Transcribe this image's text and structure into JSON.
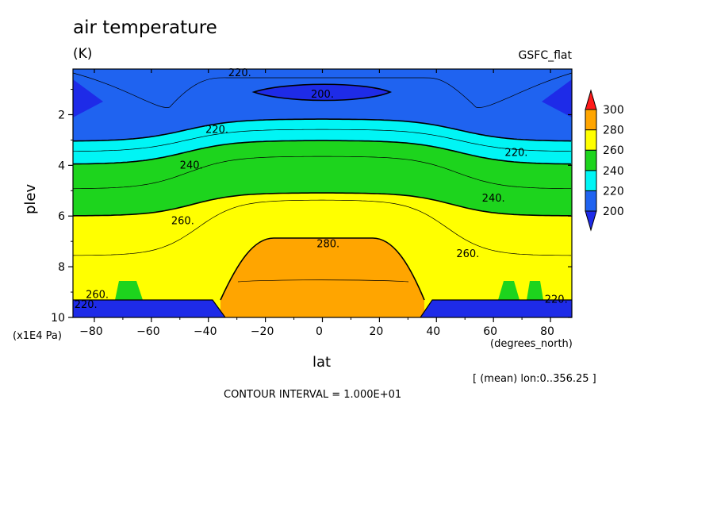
{
  "header": {
    "title": "air temperature",
    "units": "(K)",
    "source": "GSFC_flat"
  },
  "footer": {
    "x_units": "(degrees_north)",
    "y_units": "(x1E4 Pa)",
    "mean_note": "[ (mean) lon:0..356.25 ]",
    "contour_interval": "CONTOUR INTERVAL = 1.000E+01"
  },
  "colors": {
    "c_lt200": "#1e2be8",
    "c_200_220": "#1f63f0",
    "c_220_240": "#00f5f5",
    "c_240_260": "#1dd41d",
    "c_260_280": "#ffff00",
    "c_280_300": "#ffa500",
    "c_gt300": "#ff1a1a"
  },
  "chart_data": {
    "type": "heatmap",
    "subtype": "filled-contour",
    "title": "air temperature",
    "xlabel": "lat",
    "ylabel": "plev",
    "x_ticks": [
      -80,
      -60,
      -40,
      -20,
      0,
      20,
      40,
      60,
      80
    ],
    "y_ticks": [
      2,
      4,
      6,
      8,
      10
    ],
    "xlim": [
      -87.5,
      87.5
    ],
    "ylim": [
      10,
      0.2
    ],
    "y_inverted": true,
    "colorbar": {
      "labels": [
        "200",
        "220",
        "240",
        "260",
        "280",
        "300"
      ],
      "levels": [
        200,
        220,
        240,
        260,
        280,
        300
      ]
    },
    "contour_labels": [
      {
        "text": "220.",
        "lat": -29,
        "plev": 0.35
      },
      {
        "text": "200.",
        "lat": 0,
        "plev": 1.2
      },
      {
        "text": "220.",
        "lat": -37,
        "plev": 2.6
      },
      {
        "text": "240.",
        "lat": -46,
        "plev": 4.0
      },
      {
        "text": "260.",
        "lat": -49,
        "plev": 6.2
      },
      {
        "text": "280.",
        "lat": 2,
        "plev": 7.1
      },
      {
        "text": "220.",
        "lat": 68,
        "plev": 3.5
      },
      {
        "text": "240.",
        "lat": 60,
        "plev": 5.3
      },
      {
        "text": "260.",
        "lat": 51,
        "plev": 7.5
      },
      {
        "text": "220.",
        "lat": -83,
        "plev": 9.5
      },
      {
        "text": "260.",
        "lat": -79,
        "plev": 9.1
      },
      {
        "text": "220.",
        "lat": 82,
        "plev": 9.3
      }
    ]
  }
}
